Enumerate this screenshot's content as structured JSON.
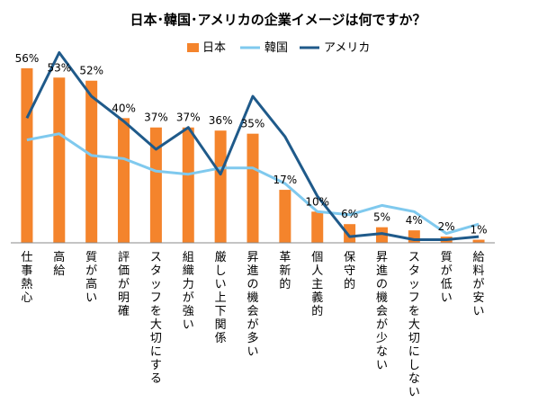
{
  "chart_data": {
    "type": "bar",
    "title": "日本･韓国･アメリカの企業イメージは何ですか？",
    "categories": [
      "仕事熱心",
      "高給",
      "質が高い",
      "評価が明確",
      "スタッフを大切にする",
      "組織力が強い",
      "厳しい上下関係",
      "昇進の機会が多い",
      "革新的",
      "個人主義的",
      "保守的",
      "昇進の機会が少ない",
      "スタッフを大切にしない",
      "質が低い",
      "給料が安い"
    ],
    "ylim": [
      0,
      60
    ],
    "grid": false,
    "legend_position": "top",
    "series": [
      {
        "name": "日本",
        "type": "bar",
        "color": "#F4842C",
        "values": [
          56,
          53,
          52,
          40,
          37,
          37,
          36,
          35,
          17,
          10,
          6,
          5,
          4,
          2,
          1
        ],
        "labels": [
          "56%",
          "53%",
          "52%",
          "40%",
          "37%",
          "37%",
          "36%",
          "35%",
          "17%",
          "10%",
          "6%",
          "5%",
          "4%",
          "2%",
          "1%"
        ]
      },
      {
        "name": "韓国",
        "type": "line",
        "color": "#7FC9EE",
        "values": [
          33,
          35,
          28,
          27,
          23,
          22,
          24,
          24,
          19,
          10,
          9,
          12,
          10,
          3,
          6
        ]
      },
      {
        "name": "アメリカ",
        "type": "line",
        "color": "#1F5A8A",
        "values": [
          40,
          61,
          47,
          39,
          30,
          37,
          22,
          47,
          34,
          15,
          2,
          3,
          1,
          1,
          2
        ]
      }
    ]
  }
}
